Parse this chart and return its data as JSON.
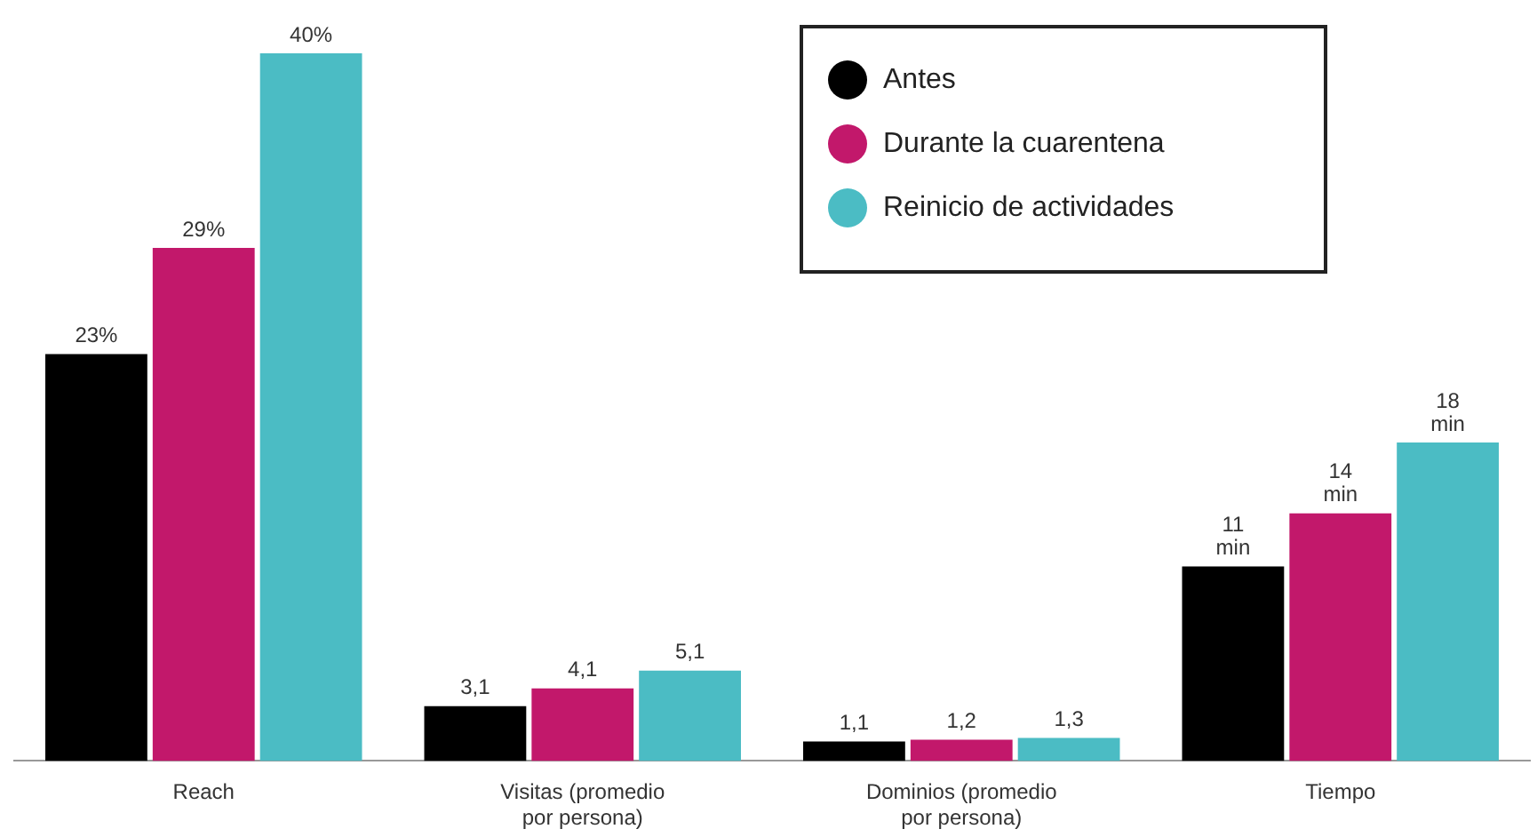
{
  "chart_data": {
    "type": "bar",
    "categories": [
      "Reach",
      "Visitas (promedio por persona)",
      "Dominios (promedio por persona)",
      "Tiempo"
    ],
    "series": [
      {
        "name": "Antes",
        "color": "#000000",
        "values": [
          23,
          3.1,
          1.1,
          11
        ],
        "value_labels": [
          "23%",
          "3,1",
          "1,1",
          "11 min"
        ]
      },
      {
        "name": "Durante la cuarentena",
        "color": "#c2186b",
        "values": [
          29,
          4.1,
          1.2,
          14
        ],
        "value_labels": [
          "29%",
          "4,1",
          "1,2",
          "14 min"
        ]
      },
      {
        "name": "Reinicio de actividades",
        "color": "#4bbcc4",
        "values": [
          40,
          5.1,
          1.3,
          18
        ],
        "value_labels": [
          "40%",
          "5,1",
          "1,3",
          "18 min"
        ]
      }
    ],
    "ylim": [
      0,
      40
    ],
    "tick_labels": "x",
    "grid": false,
    "legend": "top right"
  }
}
